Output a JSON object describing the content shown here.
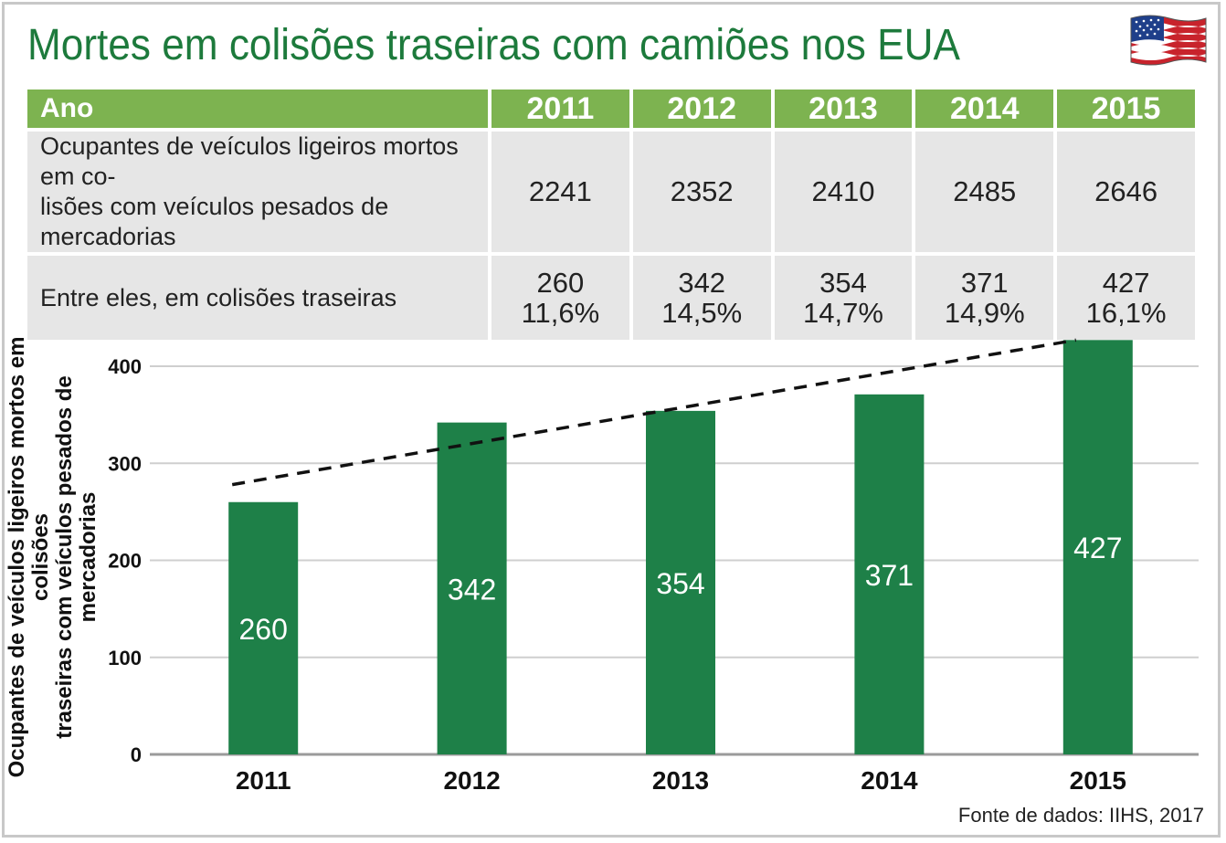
{
  "title": "Mortes em colisões traseiras com camiões nos EUA",
  "flag_icon": "usa-flag-icon",
  "colors": {
    "title": "#1d7a3c",
    "header": "#7db350",
    "bar": "#1e8048",
    "table_cell": "#e6e6e6"
  },
  "table": {
    "header_label": "Ano",
    "years": [
      "2011",
      "2012",
      "2013",
      "2014",
      "2015"
    ],
    "row1_label_line1": "Ocupantes de veículos ligeiros mortos em co-",
    "row1_label_line2": "lisões com veículos pesados de mercadorias",
    "row1_values": [
      "2241",
      "2352",
      "2410",
      "2485",
      "2646"
    ],
    "row2_label": "Entre eles, em colisões traseiras",
    "row2_values": [
      "260",
      "342",
      "354",
      "371",
      "427"
    ],
    "row2_percents": [
      "11,6%",
      "14,5%",
      "14,7%",
      "14,9%",
      "16,1%"
    ]
  },
  "chart_data": {
    "type": "bar",
    "categories": [
      "2011",
      "2012",
      "2013",
      "2014",
      "2015"
    ],
    "values": [
      260,
      342,
      354,
      371,
      427
    ],
    "ylabel_line1": "Ocupantes de veículos ligeiros mortos em colisões",
    "ylabel_line2": "traseiras com veículos pesados de mercadorias",
    "ylim": [
      0,
      427
    ],
    "yticks": [
      0,
      100,
      200,
      300,
      400
    ],
    "grid": true,
    "trendline": {
      "style": "dashed",
      "start": 278,
      "end": 427
    }
  },
  "source": "Fonte de dados: IIHS, 2017"
}
